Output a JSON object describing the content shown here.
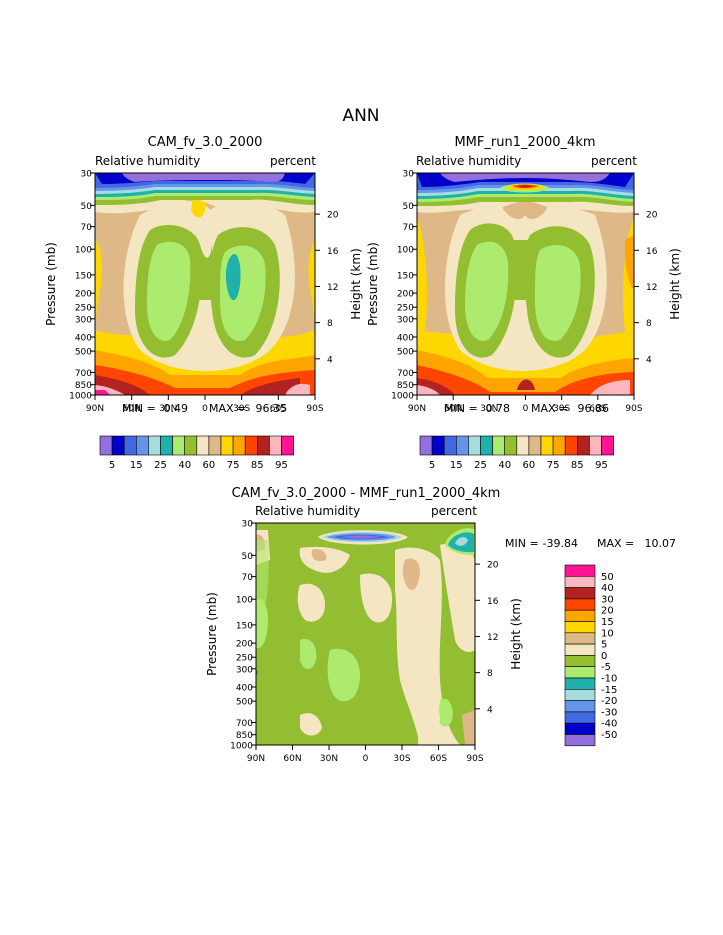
{
  "page_title": "ANN",
  "colors": {
    "rh_palette": [
      "#9370DB",
      "#0000CD",
      "#4169E1",
      "#6495ED",
      "#A6DCDC",
      "#20B2AA",
      "#ADEB6E",
      "#93BE32",
      "#F5E6C3",
      "#DEB887",
      "#FFD700",
      "#FFA500",
      "#FF4500",
      "#B22222",
      "#FFB6C1",
      "#FF1493"
    ],
    "diff_palette": [
      "#9370DB",
      "#0000CD",
      "#4169E1",
      "#6495ED",
      "#A6DCDC",
      "#20B2AA",
      "#ADEB6E",
      "#93BE32",
      "#F5E6C3",
      "#DEB887",
      "#FFD700",
      "#FFA500",
      "#FF4500",
      "#B22222",
      "#FFB6C1",
      "#FF1493"
    ]
  },
  "chart_data": [
    {
      "type": "heatmap",
      "title": "CAM_fv_3.0_2000",
      "variable": "Relative humidity",
      "units": "percent",
      "ylabel": "Pressure (mb)",
      "y2label": "Height (km)",
      "xticks": [
        "90N",
        "60N",
        "30N",
        "0",
        "30S",
        "60S",
        "90S"
      ],
      "yticks": [
        "30",
        "50",
        "70",
        "100",
        "150",
        "200",
        "250",
        "300",
        "400",
        "500",
        "700",
        "850",
        "1000"
      ],
      "y2ticks": [
        "20",
        "16",
        "12",
        "8",
        "4"
      ],
      "min": "0.49",
      "max": "96.35",
      "min_label": "MIN =",
      "max_label": "MAX =",
      "colorbar_labels": [
        "5",
        "15",
        "25",
        "40",
        "60",
        "75",
        "85",
        "95"
      ]
    },
    {
      "type": "heatmap",
      "title": "MMF_run1_2000_4km",
      "variable": "Relative humidity",
      "units": "percent",
      "ylabel": "Pressure (mb)",
      "y2label": "Height (km)",
      "xticks": [
        "90N",
        "60N",
        "30N",
        "0",
        "30S",
        "60S",
        "90S"
      ],
      "yticks": [
        "30",
        "50",
        "70",
        "100",
        "150",
        "200",
        "250",
        "300",
        "400",
        "500",
        "700",
        "850",
        "1000"
      ],
      "y2ticks": [
        "20",
        "16",
        "12",
        "8",
        "4"
      ],
      "min": "0.78",
      "max": "96.86",
      "min_label": "MIN =",
      "max_label": "MAX =",
      "colorbar_labels": [
        "5",
        "15",
        "25",
        "40",
        "60",
        "75",
        "85",
        "95"
      ]
    },
    {
      "type": "heatmap",
      "title": "CAM_fv_3.0_2000 - MMF_run1_2000_4km",
      "variable": "Relative humidity",
      "units": "percent",
      "ylabel": "Pressure (mb)",
      "y2label": "Height (km)",
      "xticks": [
        "90N",
        "60N",
        "30N",
        "0",
        "30S",
        "60S",
        "90S"
      ],
      "yticks": [
        "30",
        "50",
        "70",
        "100",
        "150",
        "200",
        "250",
        "300",
        "400",
        "500",
        "700",
        "850",
        "1000"
      ],
      "y2ticks": [
        "20",
        "16",
        "12",
        "8",
        "4"
      ],
      "min": "-39.84",
      "max": "10.07",
      "min_label": "MIN =",
      "max_label": "MAX =",
      "colorbar_labels": [
        "50",
        "40",
        "30",
        "20",
        "15",
        "10",
        "5",
        "0",
        "-5",
        "-10",
        "-15",
        "-20",
        "-30",
        "-40",
        "-50"
      ]
    }
  ]
}
